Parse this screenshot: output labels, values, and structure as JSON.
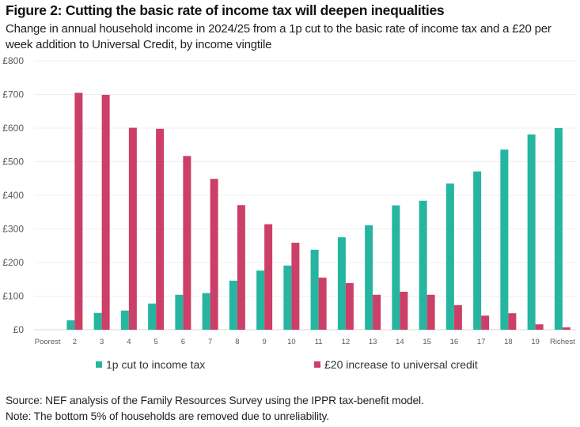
{
  "title": "Figure 2: Cutting the basic rate of income tax will deepen inequalities",
  "subtitle": "Change in annual household income in 2024/25 from a 1p cut to the basic rate of income tax and a £20 per week addition to Universal Credit, by income vingtile",
  "footer": {
    "source": "Source: NEF analysis of the Family Resources Survey using the IPPR tax-benefit model.",
    "note": "Note: The bottom 5% of households are removed due to unreliability."
  },
  "chart_data": {
    "type": "bar",
    "title": "Figure 2: Cutting the basic rate of income tax will deepen inequalities",
    "xlabel": "",
    "ylabel": "",
    "categories": [
      "Poorest",
      "2",
      "3",
      "4",
      "5",
      "6",
      "7",
      "8",
      "9",
      "10",
      "11",
      "12",
      "13",
      "14",
      "15",
      "16",
      "17",
      "18",
      "19",
      "Richest"
    ],
    "series": [
      {
        "name": "1p cut to income tax",
        "color": "#26b5a0",
        "values": [
          0,
          28,
          50,
          57,
          78,
          104,
          109,
          146,
          176,
          191,
          238,
          275,
          311,
          370,
          384,
          435,
          471,
          536,
          581,
          600
        ]
      },
      {
        "name": "£20 increase to universal credit",
        "color": "#cc3f68",
        "values": [
          0,
          705,
          699,
          601,
          598,
          517,
          449,
          371,
          314,
          259,
          155,
          139,
          104,
          113,
          104,
          73,
          42,
          49,
          16,
          7
        ]
      }
    ],
    "ylim": [
      0,
      800
    ],
    "yticks": [
      0,
      100,
      200,
      300,
      400,
      500,
      600,
      700,
      800
    ],
    "ytick_labels": [
      "£0",
      "£100",
      "£200",
      "£300",
      "£400",
      "£500",
      "£600",
      "£700",
      "£800"
    ],
    "grid": true,
    "legend_position": "bottom"
  }
}
